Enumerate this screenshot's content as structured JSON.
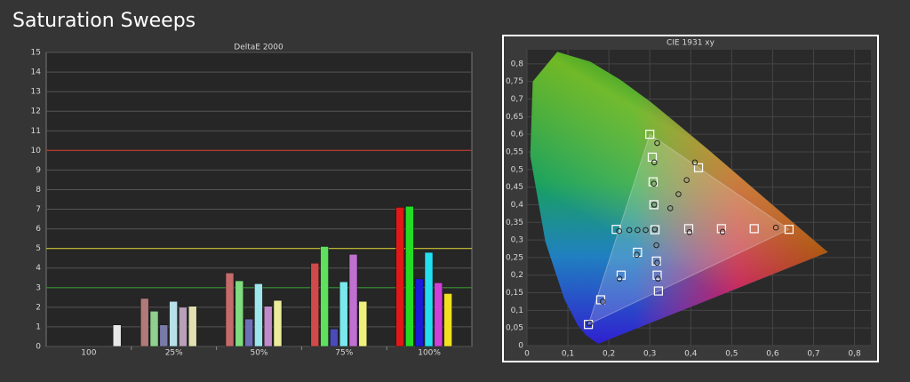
{
  "title": "Saturation Sweeps",
  "chart_data": [
    {
      "type": "bar",
      "title": "DeltaE 2000",
      "categories": [
        "100",
        "25%",
        "50%",
        "75%",
        "100%"
      ],
      "series": [
        {
          "color": "#e01818",
          "colors": [
            null,
            "#b07a7a",
            "#c46a6a",
            "#d04a4a",
            "#e01818"
          ],
          "values": [
            null,
            2.45,
            3.75,
            4.25,
            7.1
          ]
        },
        {
          "color": "#22dd22",
          "colors": [
            null,
            "#8fcf8f",
            "#7fdc7f",
            "#5fe05f",
            "#22dd22"
          ],
          "values": [
            null,
            1.8,
            3.35,
            5.1,
            7.15
          ]
        },
        {
          "color": "#1a1ad8",
          "colors": [
            null,
            "#7a7aa8",
            "#6f6fb8",
            "#4a4ab8",
            "#1a1ad8"
          ],
          "values": [
            null,
            1.1,
            1.4,
            0.9,
            3.45
          ]
        },
        {
          "color": "#22e0f0",
          "colors": [
            null,
            "#b8e0e8",
            "#9fe6ec",
            "#7ae8ee",
            "#22e0f0"
          ],
          "values": [
            null,
            2.3,
            3.2,
            3.3,
            4.8
          ]
        },
        {
          "color": "#d040d8",
          "colors": [
            null,
            "#b8a0b8",
            "#c08ac8",
            "#c070d0",
            "#d040d8"
          ],
          "values": [
            null,
            2.0,
            2.05,
            4.7,
            3.25
          ]
        },
        {
          "color": "#f0e020",
          "colors": [
            null,
            "#e0e0b0",
            "#ecec9c",
            "#f0f080",
            "#f0e020"
          ],
          "values": [
            null,
            2.05,
            2.35,
            2.3,
            2.7
          ]
        },
        {
          "color": "#e8e8e8",
          "values": [
            1.1,
            null,
            null,
            null,
            null
          ]
        }
      ],
      "ylim": [
        0,
        15
      ],
      "yticks": [
        0,
        1,
        2,
        3,
        4,
        5,
        6,
        7,
        8,
        9,
        10,
        11,
        12,
        13,
        14,
        15
      ],
      "grid": true,
      "reference_lines": [
        {
          "value": 10,
          "color": "#c0392b"
        },
        {
          "value": 5,
          "color": "#c8c030"
        },
        {
          "value": 3,
          "color": "#2e8b2e"
        }
      ]
    },
    {
      "type": "scatter",
      "title": "CIE 1931 xy",
      "xlim": [
        0,
        0.84
      ],
      "ylim": [
        0,
        0.84
      ],
      "xticks": [
        0,
        {
          "value": 0.1,
          "label": "0,1"
        },
        {
          "value": 0.2,
          "label": "0,2"
        },
        {
          "value": 0.3,
          "label": "0,3"
        },
        {
          "value": 0.4,
          "label": "0,4"
        },
        {
          "value": 0.5,
          "label": "0,5"
        },
        {
          "value": 0.6,
          "label": "0,6"
        },
        {
          "value": 0.7,
          "label": "0,7"
        },
        {
          "value": 0.8,
          "label": "0,8"
        }
      ],
      "yticks": [
        0,
        {
          "value": 0.05,
          "label": "0,05"
        },
        {
          "value": 0.1,
          "label": "0,1"
        },
        {
          "value": 0.15,
          "label": "0,15"
        },
        {
          "value": 0.2,
          "label": "0,2"
        },
        {
          "value": 0.25,
          "label": "0,25"
        },
        {
          "value": 0.3,
          "label": "0,3"
        },
        {
          "value": 0.35,
          "label": "0,35"
        },
        {
          "value": 0.4,
          "label": "0,4"
        },
        {
          "value": 0.45,
          "label": "0,45"
        },
        {
          "value": 0.5,
          "label": "0,5"
        },
        {
          "value": 0.55,
          "label": "0,55"
        },
        {
          "value": 0.6,
          "label": "0,6"
        },
        {
          "value": 0.65,
          "label": "0,65"
        },
        {
          "value": 0.7,
          "label": "0,7"
        },
        {
          "value": 0.75,
          "label": "0,75"
        },
        {
          "value": 0.8,
          "label": "0,8"
        }
      ],
      "grid": true,
      "series": [
        {
          "marker": "square",
          "color": "#ffffff",
          "x": [
            0.64,
            0.3,
            0.15,
            0.3127,
            0.555,
            0.475,
            0.395,
            0.306,
            0.308,
            0.31,
            0.18,
            0.23,
            0.27,
            0.218,
            0.321,
            0.318,
            0.316,
            0.419
          ],
          "y": [
            0.33,
            0.6,
            0.06,
            0.329,
            0.332,
            0.332,
            0.332,
            0.535,
            0.465,
            0.4,
            0.13,
            0.2,
            0.265,
            0.33,
            0.155,
            0.2,
            0.24,
            0.505
          ]
        },
        {
          "marker": "circle",
          "color": "#222222",
          "x": [
            0.608,
            0.478,
            0.397,
            0.318,
            0.311,
            0.31,
            0.311,
            0.153,
            0.185,
            0.226,
            0.268,
            0.225,
            0.25,
            0.27,
            0.29,
            0.32,
            0.318,
            0.316,
            0.41,
            0.39,
            0.37,
            0.35,
            0.312
          ],
          "y": [
            0.335,
            0.323,
            0.322,
            0.575,
            0.52,
            0.46,
            0.4,
            0.063,
            0.125,
            0.19,
            0.258,
            0.325,
            0.328,
            0.328,
            0.328,
            0.19,
            0.235,
            0.285,
            0.52,
            0.47,
            0.43,
            0.39,
            0.33
          ]
        }
      ]
    }
  ]
}
